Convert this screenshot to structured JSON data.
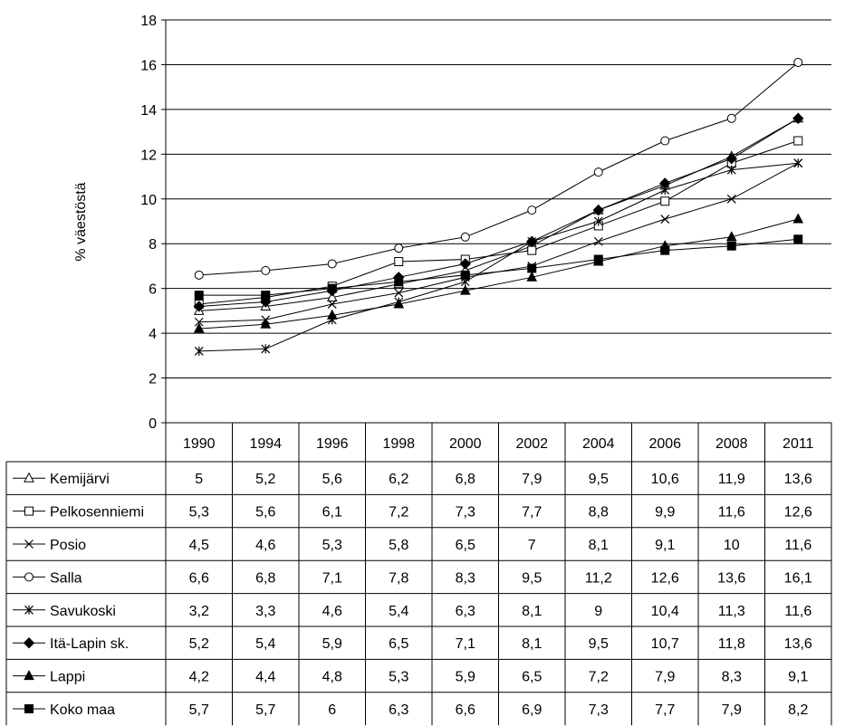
{
  "chart_data": {
    "type": "line",
    "ylabel": "% väestöstä",
    "ylim": [
      0,
      18
    ],
    "yticks": [
      0,
      2,
      4,
      6,
      8,
      10,
      12,
      14,
      16,
      18
    ],
    "grid": "horizontal",
    "legend": "data table below chart",
    "categories": [
      "1990",
      "1994",
      "1996",
      "1998",
      "2000",
      "2002",
      "2004",
      "2006",
      "2008",
      "2011"
    ],
    "series": [
      {
        "name": "Kemijärvi",
        "marker": "open-triangle",
        "values": [
          5,
          5.2,
          5.6,
          6.2,
          6.8,
          7.9,
          9.5,
          10.6,
          11.9,
          13.6
        ],
        "labels": [
          "5",
          "5,2",
          "5,6",
          "6,2",
          "6,8",
          "7,9",
          "9,5",
          "10,6",
          "11,9",
          "13,6"
        ]
      },
      {
        "name": "Pelkosenniemi",
        "marker": "open-square",
        "values": [
          5.3,
          5.6,
          6.1,
          7.2,
          7.3,
          7.7,
          8.8,
          9.9,
          11.6,
          12.6
        ],
        "labels": [
          "5,3",
          "5,6",
          "6,1",
          "7,2",
          "7,3",
          "7,7",
          "8,8",
          "9,9",
          "11,6",
          "12,6"
        ]
      },
      {
        "name": "Posio",
        "marker": "x",
        "values": [
          4.5,
          4.6,
          5.3,
          5.8,
          6.5,
          7,
          8.1,
          9.1,
          10,
          11.6
        ],
        "labels": [
          "4,5",
          "4,6",
          "5,3",
          "5,8",
          "6,5",
          "7",
          "8,1",
          "9,1",
          "10",
          "11,6"
        ]
      },
      {
        "name": "Salla",
        "marker": "open-circle",
        "values": [
          6.6,
          6.8,
          7.1,
          7.8,
          8.3,
          9.5,
          11.2,
          12.6,
          13.6,
          16.1
        ],
        "labels": [
          "6,6",
          "6,8",
          "7,1",
          "7,8",
          "8,3",
          "9,5",
          "11,2",
          "12,6",
          "13,6",
          "16,1"
        ]
      },
      {
        "name": "Savukoski",
        "marker": "asterisk",
        "values": [
          3.2,
          3.3,
          4.6,
          5.4,
          6.3,
          8.1,
          9,
          10.4,
          11.3,
          11.6
        ],
        "labels": [
          "3,2",
          "3,3",
          "4,6",
          "5,4",
          "6,3",
          "8,1",
          "9",
          "10,4",
          "11,3",
          "11,6"
        ]
      },
      {
        "name": "Itä-Lapin sk.",
        "marker": "filled-diamond",
        "values": [
          5.2,
          5.4,
          5.9,
          6.5,
          7.1,
          8.1,
          9.5,
          10.7,
          11.8,
          13.6
        ],
        "labels": [
          "5,2",
          "5,4",
          "5,9",
          "6,5",
          "7,1",
          "8,1",
          "9,5",
          "10,7",
          "11,8",
          "13,6"
        ]
      },
      {
        "name": "Lappi",
        "marker": "filled-triangle",
        "values": [
          4.2,
          4.4,
          4.8,
          5.3,
          5.9,
          6.5,
          7.2,
          7.9,
          8.3,
          9.1
        ],
        "labels": [
          "4,2",
          "4,4",
          "4,8",
          "5,3",
          "5,9",
          "6,5",
          "7,2",
          "7,9",
          "8,3",
          "9,1"
        ]
      },
      {
        "name": "Koko maa",
        "marker": "filled-square",
        "values": [
          5.7,
          5.7,
          6,
          6.3,
          6.6,
          6.9,
          7.3,
          7.7,
          7.9,
          8.2
        ],
        "labels": [
          "5,7",
          "5,7",
          "6",
          "6,3",
          "6,6",
          "6,9",
          "7,3",
          "7,7",
          "7,9",
          "8,2"
        ]
      }
    ]
  }
}
